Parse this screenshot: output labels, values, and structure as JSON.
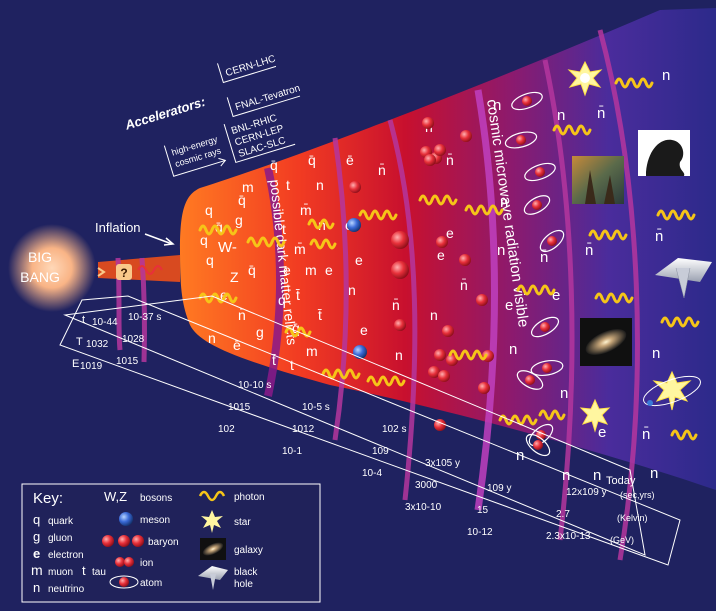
{
  "bang": {
    "line1": "BIG",
    "line2": "BANG"
  },
  "inflation": "Inflation",
  "question": "?",
  "accelerators": {
    "title": "Accelerators:",
    "cern_lhc": "CERN-LHC",
    "fnal": "FNAL-Tevatron",
    "bnl": "BNL-RHIC",
    "cern_lep": "CERN-LEP",
    "slac": "SLAC-SLC",
    "cosmic1": "high-energy",
    "cosmic2": "cosmic rays"
  },
  "bands": {
    "dark_matter": "possible dark matter relicts",
    "cmb": "cosmic microwave radiation visible"
  },
  "scale": {
    "row_labels": [
      "t",
      "T",
      "E"
    ],
    "columns": [
      {
        "t": "10-44",
        "T": "1032",
        "E": "1019"
      },
      {
        "t": "10-37 s",
        "T": "1028",
        "E": "1015"
      },
      {
        "t": "10-10 s",
        "T": "1015",
        "E": "102"
      },
      {
        "t": "10-5 s",
        "T": "1012",
        "E": "10-1"
      },
      {
        "t": "102 s",
        "T": "109",
        "E": "10-4"
      },
      {
        "t": "3x105 y",
        "T": "3000",
        "E": "3x10-10"
      },
      {
        "t": "109 y",
        "T": "15",
        "E": "10-12"
      },
      {
        "t": "12x109 y",
        "T": "2.7",
        "E": "2.3x10-13"
      }
    ],
    "today": "Today",
    "unit_t": "(sec,yrs)",
    "unit_T": "(Kelvin)",
    "unit_E": "(GeV)"
  },
  "symbols": {
    "q": "q",
    "qbar": "q̄",
    "g": "g",
    "e": "e",
    "ebar": "ē",
    "n": "n",
    "nbar": "n̄",
    "m": "m",
    "mbar": "m̄",
    "t": "t",
    "tbar": "t̄",
    "W": "W",
    "Wm": "W-",
    "Z": "Z",
    "mol": "qq",
    "qqq": "q q q"
  },
  "key": {
    "title": "Key:",
    "quark": {
      "sym": "q",
      "label": "quark"
    },
    "gluon": {
      "sym": "g",
      "label": "gluon"
    },
    "electron": {
      "sym": "e",
      "label": "electron"
    },
    "muon": {
      "sym": "m",
      "label": "muon",
      "sym2": "t",
      "label2": "tau"
    },
    "neutrino": {
      "sym": "n",
      "label": "neutrino"
    },
    "bosons": {
      "sym": "W,Z",
      "label": "bosons"
    },
    "meson": "meson",
    "baryon": "baryon",
    "ion": "ion",
    "atom": "atom",
    "photon": "photon",
    "star": "star",
    "galaxy": "galaxy",
    "black_hole1": "black",
    "black_hole2": "hole"
  },
  "colors": {
    "background": "#1f2260",
    "cone_start": "#ff6a1a",
    "cone_mid": "#c8102e",
    "cone_end": "#3a2e9a",
    "photon": "#f6c518",
    "particle": "#e8303a",
    "band": "#9b2fa8"
  }
}
